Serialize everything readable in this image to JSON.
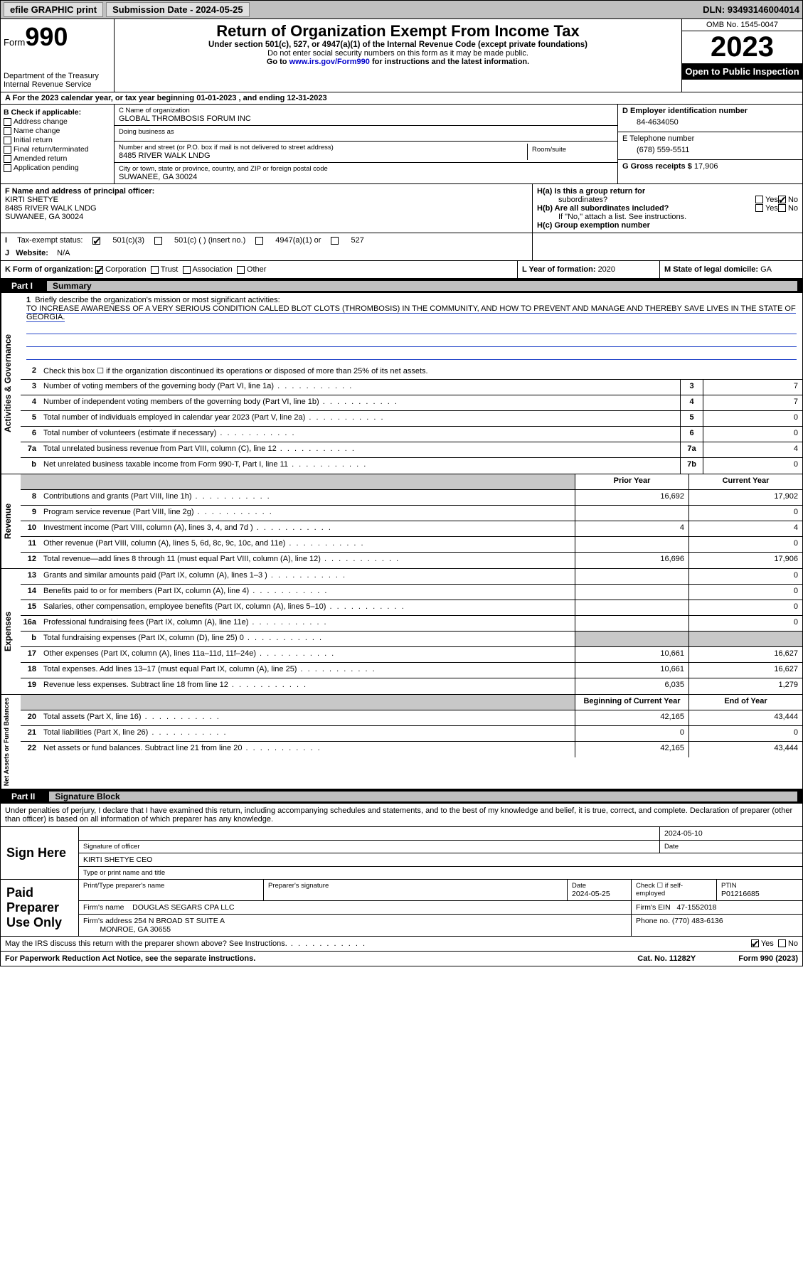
{
  "topbar": {
    "efile": "efile GRAPHIC print",
    "sub_label": "Submission Date - 2024-05-25",
    "dln": "DLN: 93493146004014"
  },
  "header": {
    "form_prefix": "Form",
    "form_num": "990",
    "title": "Return of Organization Exempt From Income Tax",
    "sub": "Under section 501(c), 527, or 4947(a)(1) of the Internal Revenue Code (except private foundations)",
    "notice1": "Do not enter social security numbers on this form as it may be made public.",
    "notice2_pre": "Go to ",
    "notice2_link": "www.irs.gov/Form990",
    "notice2_post": " for instructions and the latest information.",
    "dept": "Department of the Treasury\nInternal Revenue Service",
    "omb": "OMB No. 1545-0047",
    "year": "2023",
    "otp": "Open to Public Inspection"
  },
  "lineA": "For the 2023 calendar year, or tax year beginning 01-01-2023   , and ending 12-31-2023",
  "colB": {
    "title": "B Check if applicable:",
    "items": [
      "Address change",
      "Name change",
      "Initial return",
      "Final return/terminated",
      "Amended return",
      "Application pending"
    ]
  },
  "colC": {
    "name_lbl": "C Name of organization",
    "name": "GLOBAL THROMBOSIS FORUM INC",
    "dba_lbl": "Doing business as",
    "street_lbl": "Number and street (or P.O. box if mail is not delivered to street address)",
    "room_lbl": "Room/suite",
    "street": "8485 RIVER WALK LNDG",
    "city_lbl": "City or town, state or province, country, and ZIP or foreign postal code",
    "city": "SUWANEE, GA  30024"
  },
  "colD": {
    "lbl": "D Employer identification number",
    "val": "84-4634050"
  },
  "colE": {
    "lbl": "E Telephone number",
    "val": "(678) 559-5511"
  },
  "colG": {
    "lbl": "G Gross receipts $ ",
    "val": "17,906"
  },
  "colF": {
    "lbl": "F  Name and address of principal officer:",
    "name": "KIRTI SHETYE",
    "addr1": "8485 RIVER WALK LNDG",
    "addr2": "SUWANEE, GA  30024"
  },
  "colH": {
    "a": "H(a)  Is this a group return for",
    "a2": "subordinates?",
    "b": "H(b)  Are all subordinates included?",
    "bnote": "If \"No,\" attach a list. See instructions.",
    "c": "H(c)  Group exemption number"
  },
  "rowI": {
    "lbl": "Tax-exempt status:",
    "opts": [
      "501(c)(3)",
      "501(c) (  ) (insert no.)",
      "4947(a)(1) or",
      "527"
    ]
  },
  "rowJ": {
    "lbl": "Website:",
    "val": "N/A"
  },
  "rowK": {
    "lbl": "K Form of organization:",
    "opts": [
      "Corporation",
      "Trust",
      "Association",
      "Other"
    ]
  },
  "rowL": {
    "lbl": "L Year of formation: ",
    "val": "2020"
  },
  "rowM": {
    "lbl": "M State of legal domicile: ",
    "val": "GA"
  },
  "part1": {
    "hdr": "Part I",
    "title": "Summary"
  },
  "mission_lbl": "Briefly describe the organization's mission or most significant activities:",
  "mission": "TO INCREASE AWARENESS OF A VERY SERIOUS CONDITION CALLED BLOT CLOTS (THROMBOSIS) IN THE COMMUNITY, AND HOW TO PREVENT AND MANAGE AND THEREBY SAVE LIVES IN THE STATE OF GEORGIA.",
  "gov_rows": [
    {
      "n": "2",
      "t": "Check this box ☐ if the organization discontinued its operations or disposed of more than 25% of its net assets."
    },
    {
      "n": "3",
      "t": "Number of voting members of the governing body (Part VI, line 1a)",
      "box": "3",
      "v": "7"
    },
    {
      "n": "4",
      "t": "Number of independent voting members of the governing body (Part VI, line 1b)",
      "box": "4",
      "v": "7"
    },
    {
      "n": "5",
      "t": "Total number of individuals employed in calendar year 2023 (Part V, line 2a)",
      "box": "5",
      "v": "0"
    },
    {
      "n": "6",
      "t": "Total number of volunteers (estimate if necessary)",
      "box": "6",
      "v": "0"
    },
    {
      "n": "7a",
      "t": "Total unrelated business revenue from Part VIII, column (C), line 12",
      "box": "7a",
      "v": "4"
    },
    {
      "n": "b",
      "t": "Net unrelated business taxable income from Form 990-T, Part I, line 11",
      "box": "7b",
      "v": "0"
    }
  ],
  "rev_hdr": {
    "prior": "Prior Year",
    "curr": "Current Year"
  },
  "rev_rows": [
    {
      "n": "8",
      "t": "Contributions and grants (Part VIII, line 1h)",
      "p": "16,692",
      "c": "17,902"
    },
    {
      "n": "9",
      "t": "Program service revenue (Part VIII, line 2g)",
      "p": "",
      "c": "0"
    },
    {
      "n": "10",
      "t": "Investment income (Part VIII, column (A), lines 3, 4, and 7d )",
      "p": "4",
      "c": "4"
    },
    {
      "n": "11",
      "t": "Other revenue (Part VIII, column (A), lines 5, 6d, 8c, 9c, 10c, and 11e)",
      "p": "",
      "c": "0"
    },
    {
      "n": "12",
      "t": "Total revenue—add lines 8 through 11 (must equal Part VIII, column (A), line 12)",
      "p": "16,696",
      "c": "17,906"
    }
  ],
  "exp_rows": [
    {
      "n": "13",
      "t": "Grants and similar amounts paid (Part IX, column (A), lines 1–3 )",
      "p": "",
      "c": "0"
    },
    {
      "n": "14",
      "t": "Benefits paid to or for members (Part IX, column (A), line 4)",
      "p": "",
      "c": "0"
    },
    {
      "n": "15",
      "t": "Salaries, other compensation, employee benefits (Part IX, column (A), lines 5–10)",
      "p": "",
      "c": "0"
    },
    {
      "n": "16a",
      "t": "Professional fundraising fees (Part IX, column (A), line 11e)",
      "p": "",
      "c": "0"
    },
    {
      "n": "b",
      "t": "Total fundraising expenses (Part IX, column (D), line 25) 0",
      "shadeP": true,
      "shadeC": true
    },
    {
      "n": "17",
      "t": "Other expenses (Part IX, column (A), lines 11a–11d, 11f–24e)",
      "p": "10,661",
      "c": "16,627"
    },
    {
      "n": "18",
      "t": "Total expenses. Add lines 13–17 (must equal Part IX, column (A), line 25)",
      "p": "10,661",
      "c": "16,627"
    },
    {
      "n": "19",
      "t": "Revenue less expenses. Subtract line 18 from line 12",
      "p": "6,035",
      "c": "1,279"
    }
  ],
  "net_hdr": {
    "prior": "Beginning of Current Year",
    "curr": "End of Year"
  },
  "net_rows": [
    {
      "n": "20",
      "t": "Total assets (Part X, line 16)",
      "p": "42,165",
      "c": "43,444"
    },
    {
      "n": "21",
      "t": "Total liabilities (Part X, line 26)",
      "p": "0",
      "c": "0"
    },
    {
      "n": "22",
      "t": "Net assets or fund balances. Subtract line 21 from line 20",
      "p": "42,165",
      "c": "43,444"
    }
  ],
  "vtabs": {
    "gov": "Activities & Governance",
    "rev": "Revenue",
    "exp": "Expenses",
    "net": "Net Assets or Fund Balances"
  },
  "part2": {
    "hdr": "Part II",
    "title": "Signature Block"
  },
  "sig_decl": "Under penalties of perjury, I declare that I have examined this return, including accompanying schedules and statements, and to the best of my knowledge and belief, it is true, correct, and complete. Declaration of preparer (other than officer) is based on all information of which preparer has any knowledge.",
  "sign_here": {
    "lbl": "Sign Here",
    "date": "2024-05-10",
    "sig_lbl": "Signature of officer",
    "date_lbl": "Date",
    "name": "KIRTI SHETYE CEO",
    "name_lbl": "Type or print name and title"
  },
  "paid": {
    "lbl": "Paid Preparer Use Only",
    "pp_name_lbl": "Print/Type preparer's name",
    "pp_sig_lbl": "Preparer's signature",
    "pp_date_lbl": "Date",
    "pp_date": "2024-05-25",
    "self_lbl": "Check ☐ if self-employed",
    "ptin_lbl": "PTIN",
    "ptin": "P01216685",
    "firm_name_lbl": "Firm's name",
    "firm_name": "DOUGLAS SEGARS CPA LLC",
    "firm_ein_lbl": "Firm's EIN",
    "firm_ein": "47-1552018",
    "firm_addr_lbl": "Firm's address",
    "firm_addr1": "254 N BROAD ST SUITE A",
    "firm_addr2": "MONROE, GA  30655",
    "phone_lbl": "Phone no.",
    "phone": "(770) 483-6136"
  },
  "discuss": "May the IRS discuss this return with the preparer shown above? See Instructions.",
  "footer": {
    "pra": "For Paperwork Reduction Act Notice, see the separate instructions.",
    "cat": "Cat. No. 11282Y",
    "form": "Form 990 (2023)"
  },
  "yes": "Yes",
  "no": "No",
  "colors": {
    "link": "#0000cc",
    "line": "#2a4aca",
    "shade": "#c8c8c8"
  }
}
